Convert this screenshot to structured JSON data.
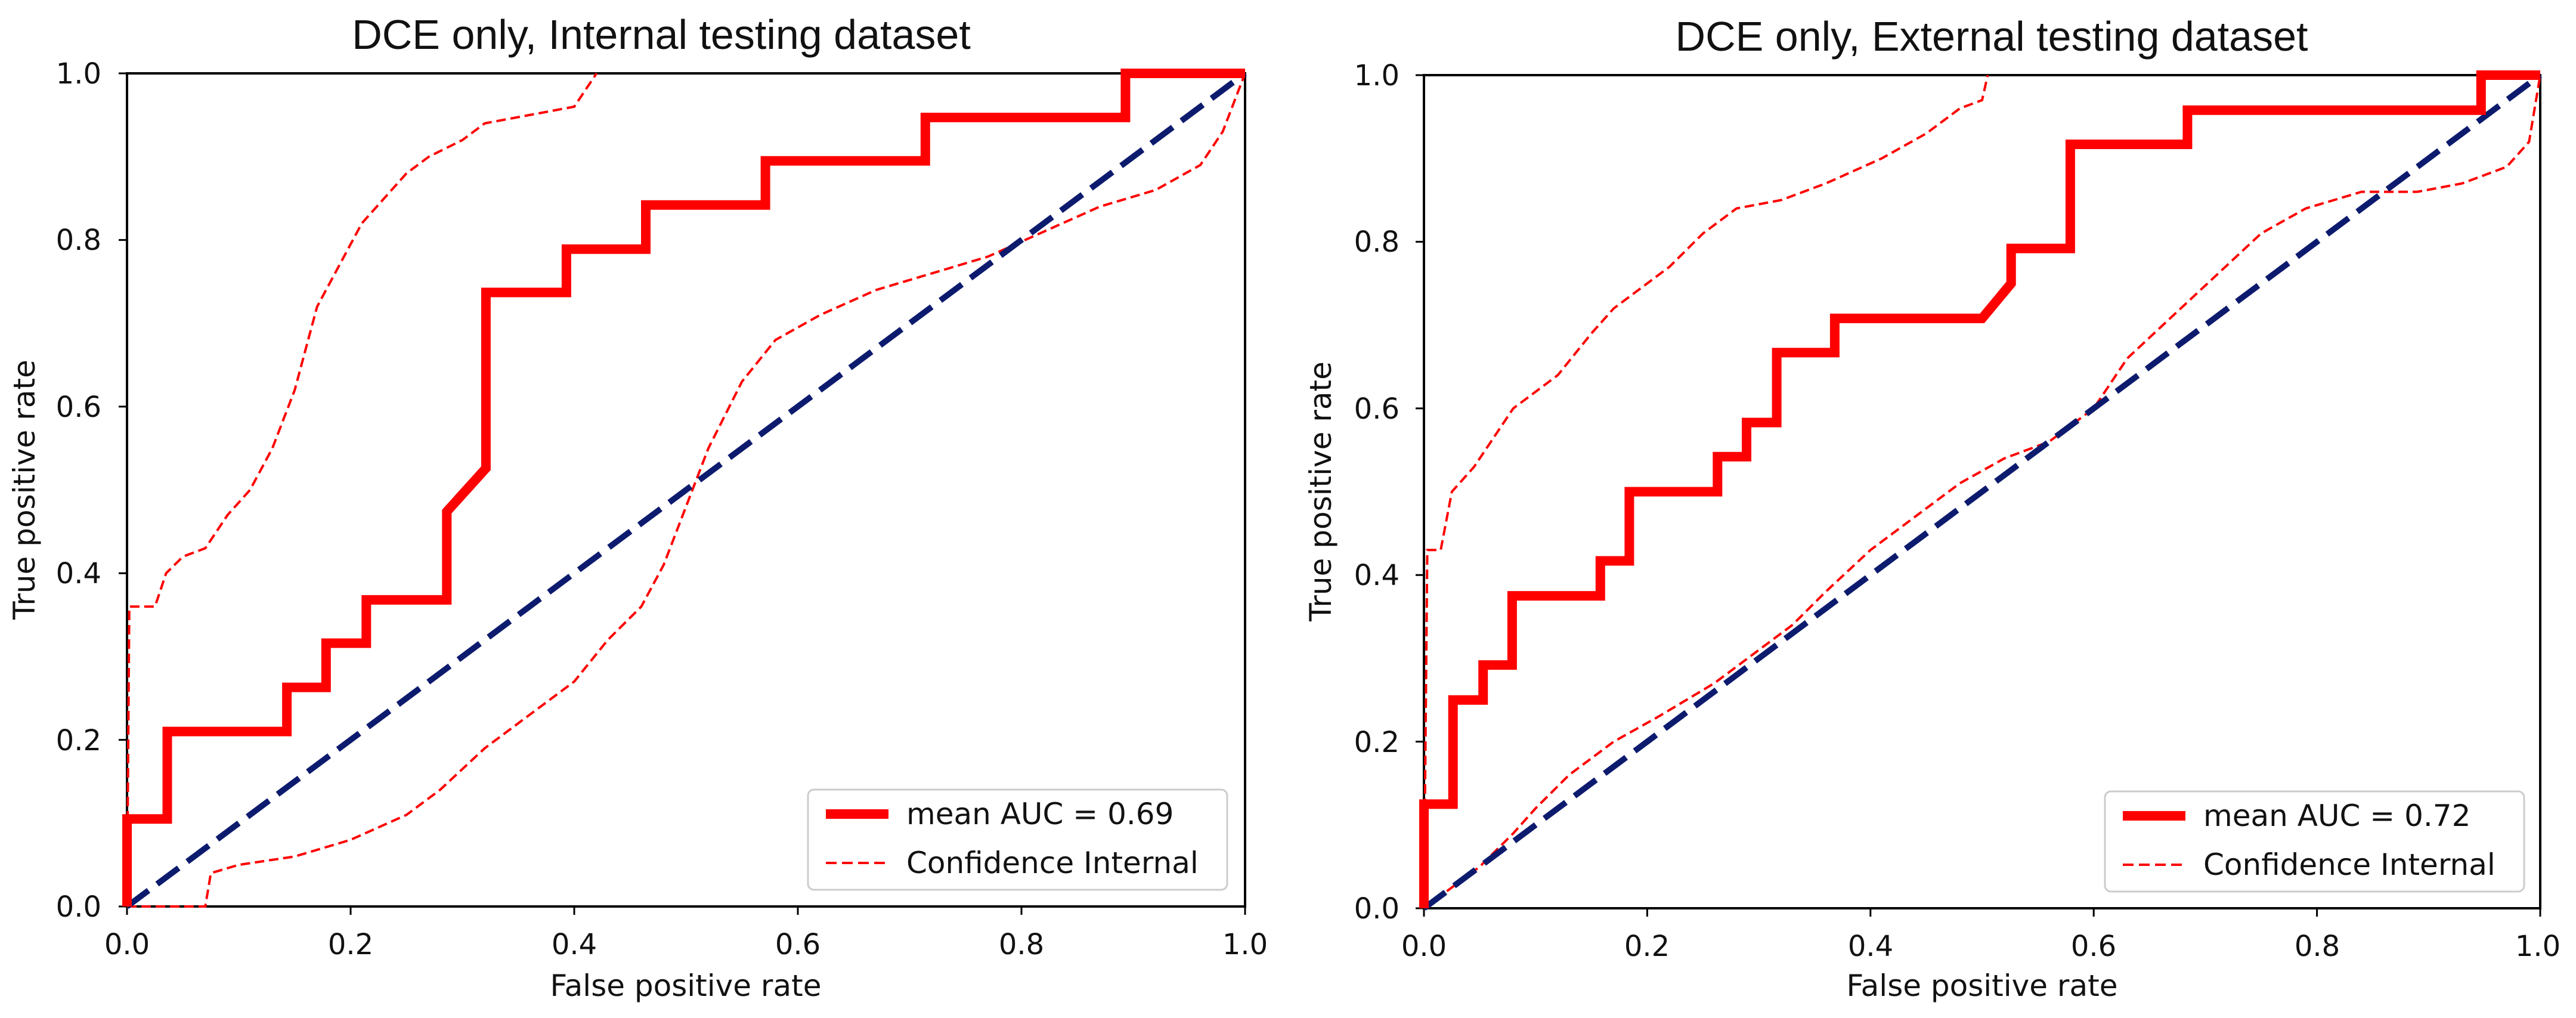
{
  "colors": {
    "roc": "#ff0000",
    "ci": "#ff0000",
    "diagonal": "#0d1b6e",
    "axis": "#000000",
    "legend_border": "#cccccc"
  },
  "chart_data": [
    {
      "type": "line",
      "title": "DCE only, Internal testing dataset",
      "xlabel": "False positive rate",
      "ylabel": "True positive rate",
      "xlim": [
        0.0,
        1.0
      ],
      "ylim": [
        0.0,
        1.0
      ],
      "xticks": [
        "0.0",
        "0.2",
        "0.4",
        "0.6",
        "0.8",
        "1.0"
      ],
      "yticks": [
        "0.0",
        "0.2",
        "0.4",
        "0.6",
        "0.8",
        "1.0"
      ],
      "grid": false,
      "legend_position": "lower-right",
      "legend": [
        "mean AUC = 0.69",
        "Confidence Internal"
      ],
      "series": [
        {
          "name": "mean AUC = 0.69",
          "style": "solid-thick",
          "points": [
            [
              0,
              0
            ],
            [
              0,
              0.105
            ],
            [
              0.036,
              0.105
            ],
            [
              0.036,
              0.21
            ],
            [
              0.143,
              0.21
            ],
            [
              0.143,
              0.263
            ],
            [
              0.178,
              0.263
            ],
            [
              0.178,
              0.316
            ],
            [
              0.214,
              0.316
            ],
            [
              0.214,
              0.368
            ],
            [
              0.286,
              0.368
            ],
            [
              0.286,
              0.474
            ],
            [
              0.321,
              0.526
            ],
            [
              0.321,
              0.737
            ],
            [
              0.393,
              0.737
            ],
            [
              0.393,
              0.789
            ],
            [
              0.464,
              0.789
            ],
            [
              0.464,
              0.842
            ],
            [
              0.571,
              0.842
            ],
            [
              0.571,
              0.895
            ],
            [
              0.714,
              0.895
            ],
            [
              0.714,
              0.947
            ],
            [
              0.893,
              0.947
            ],
            [
              0.893,
              1.0
            ],
            [
              1.0,
              1.0
            ]
          ]
        },
        {
          "name": "Confidence Internal",
          "style": "dashed-upper",
          "points": [
            [
              0,
              0
            ],
            [
              0.002,
              0.36
            ],
            [
              0.025,
              0.36
            ],
            [
              0.035,
              0.4
            ],
            [
              0.05,
              0.42
            ],
            [
              0.07,
              0.43
            ],
            [
              0.09,
              0.47
            ],
            [
              0.11,
              0.5
            ],
            [
              0.13,
              0.55
            ],
            [
              0.15,
              0.62
            ],
            [
              0.16,
              0.67
            ],
            [
              0.17,
              0.72
            ],
            [
              0.19,
              0.77
            ],
            [
              0.21,
              0.82
            ],
            [
              0.23,
              0.85
            ],
            [
              0.25,
              0.88
            ],
            [
              0.27,
              0.9
            ],
            [
              0.3,
              0.92
            ],
            [
              0.32,
              0.94
            ],
            [
              0.36,
              0.95
            ],
            [
              0.4,
              0.96
            ],
            [
              0.42,
              1.0
            ]
          ]
        },
        {
          "name": "Confidence Internal lower",
          "style": "dashed-lower",
          "points": [
            [
              0,
              0
            ],
            [
              0.07,
              0.0
            ],
            [
              0.075,
              0.04
            ],
            [
              0.1,
              0.05
            ],
            [
              0.15,
              0.06
            ],
            [
              0.2,
              0.08
            ],
            [
              0.25,
              0.11
            ],
            [
              0.28,
              0.14
            ],
            [
              0.32,
              0.19
            ],
            [
              0.36,
              0.23
            ],
            [
              0.4,
              0.27
            ],
            [
              0.43,
              0.32
            ],
            [
              0.46,
              0.36
            ],
            [
              0.48,
              0.41
            ],
            [
              0.5,
              0.48
            ],
            [
              0.52,
              0.55
            ],
            [
              0.55,
              0.63
            ],
            [
              0.58,
              0.68
            ],
            [
              0.62,
              0.71
            ],
            [
              0.67,
              0.74
            ],
            [
              0.72,
              0.76
            ],
            [
              0.77,
              0.78
            ],
            [
              0.82,
              0.81
            ],
            [
              0.87,
              0.84
            ],
            [
              0.92,
              0.86
            ],
            [
              0.96,
              0.89
            ],
            [
              0.98,
              0.93
            ],
            [
              1.0,
              1.0
            ]
          ]
        },
        {
          "name": "chance",
          "style": "diagonal",
          "points": [
            [
              0,
              0
            ],
            [
              1,
              1
            ]
          ]
        }
      ]
    },
    {
      "type": "line",
      "title": "DCE only, External testing dataset",
      "xlabel": "False positive rate",
      "ylabel": "True positive rate",
      "xlim": [
        0.0,
        1.0
      ],
      "ylim": [
        0.0,
        1.0
      ],
      "xticks": [
        "0.0",
        "0.2",
        "0.4",
        "0.6",
        "0.8",
        "1.0"
      ],
      "yticks": [
        "0.0",
        "0.2",
        "0.4",
        "0.6",
        "0.8",
        "1.0"
      ],
      "grid": false,
      "legend_position": "lower-right",
      "legend": [
        "mean AUC = 0.72",
        "Confidence Internal"
      ],
      "series": [
        {
          "name": "mean AUC = 0.72",
          "style": "solid-thick",
          "points": [
            [
              0,
              0
            ],
            [
              0,
              0.125
            ],
            [
              0.026,
              0.125
            ],
            [
              0.026,
              0.25
            ],
            [
              0.053,
              0.25
            ],
            [
              0.053,
              0.292
            ],
            [
              0.079,
              0.292
            ],
            [
              0.079,
              0.375
            ],
            [
              0.158,
              0.375
            ],
            [
              0.158,
              0.417
            ],
            [
              0.184,
              0.417
            ],
            [
              0.184,
              0.5
            ],
            [
              0.263,
              0.5
            ],
            [
              0.263,
              0.542
            ],
            [
              0.289,
              0.542
            ],
            [
              0.289,
              0.583
            ],
            [
              0.316,
              0.583
            ],
            [
              0.316,
              0.667
            ],
            [
              0.368,
              0.667
            ],
            [
              0.368,
              0.708
            ],
            [
              0.5,
              0.708
            ],
            [
              0.526,
              0.75
            ],
            [
              0.526,
              0.792
            ],
            [
              0.579,
              0.792
            ],
            [
              0.579,
              0.917
            ],
            [
              0.684,
              0.917
            ],
            [
              0.684,
              0.958
            ],
            [
              0.947,
              0.958
            ],
            [
              0.947,
              1.0
            ],
            [
              1.0,
              1.0
            ]
          ]
        },
        {
          "name": "Confidence Internal",
          "style": "dashed-upper",
          "points": [
            [
              0,
              0
            ],
            [
              0.003,
              0.43
            ],
            [
              0.015,
              0.43
            ],
            [
              0.025,
              0.5
            ],
            [
              0.045,
              0.53
            ],
            [
              0.06,
              0.56
            ],
            [
              0.08,
              0.6
            ],
            [
              0.1,
              0.62
            ],
            [
              0.12,
              0.64
            ],
            [
              0.15,
              0.69
            ],
            [
              0.17,
              0.72
            ],
            [
              0.19,
              0.74
            ],
            [
              0.22,
              0.77
            ],
            [
              0.25,
              0.81
            ],
            [
              0.28,
              0.84
            ],
            [
              0.32,
              0.85
            ],
            [
              0.36,
              0.87
            ],
            [
              0.41,
              0.9
            ],
            [
              0.45,
              0.93
            ],
            [
              0.48,
              0.96
            ],
            [
              0.5,
              0.97
            ],
            [
              0.505,
              1.0
            ]
          ]
        },
        {
          "name": "Confidence Internal lower",
          "style": "dashed-lower",
          "points": [
            [
              0,
              0
            ],
            [
              0.02,
              0.02
            ],
            [
              0.05,
              0.05
            ],
            [
              0.08,
              0.09
            ],
            [
              0.1,
              0.12
            ],
            [
              0.13,
              0.16
            ],
            [
              0.17,
              0.2
            ],
            [
              0.21,
              0.23
            ],
            [
              0.26,
              0.27
            ],
            [
              0.3,
              0.31
            ],
            [
              0.33,
              0.34
            ],
            [
              0.36,
              0.38
            ],
            [
              0.4,
              0.43
            ],
            [
              0.44,
              0.47
            ],
            [
              0.48,
              0.51
            ],
            [
              0.52,
              0.54
            ],
            [
              0.56,
              0.56
            ],
            [
              0.6,
              0.6
            ],
            [
              0.63,
              0.66
            ],
            [
              0.67,
              0.71
            ],
            [
              0.71,
              0.76
            ],
            [
              0.75,
              0.81
            ],
            [
              0.79,
              0.84
            ],
            [
              0.84,
              0.86
            ],
            [
              0.89,
              0.86
            ],
            [
              0.93,
              0.87
            ],
            [
              0.97,
              0.89
            ],
            [
              0.99,
              0.92
            ],
            [
              1.0,
              1.0
            ]
          ]
        },
        {
          "name": "chance",
          "style": "diagonal",
          "points": [
            [
              0,
              0
            ],
            [
              1,
              1
            ]
          ]
        }
      ]
    }
  ]
}
